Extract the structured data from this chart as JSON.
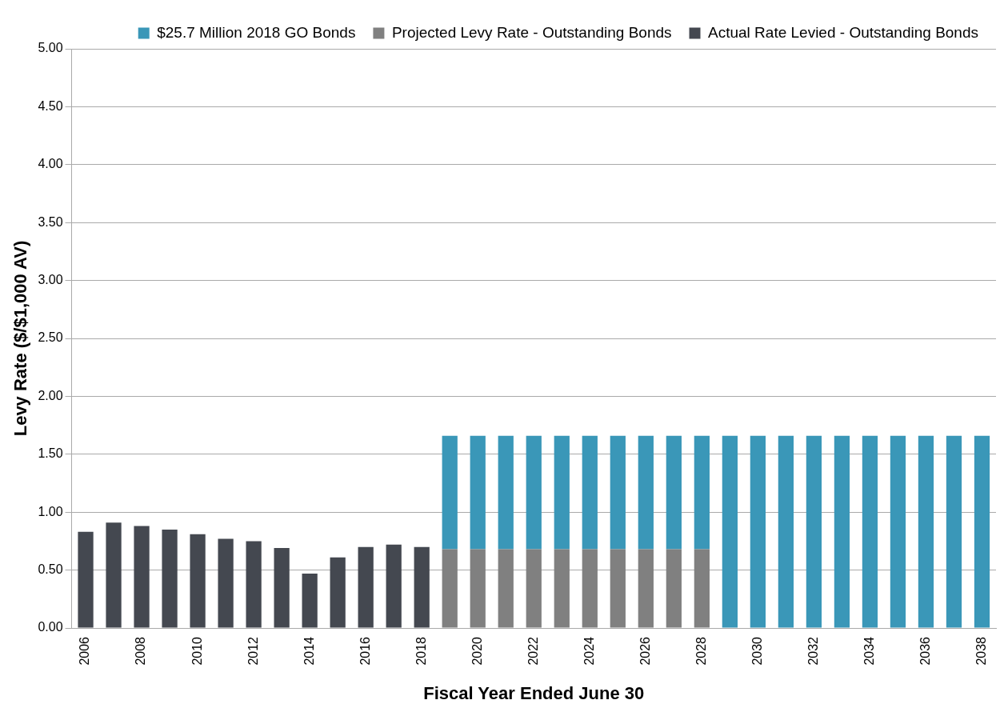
{
  "chart_data": {
    "type": "bar",
    "stacked": true,
    "xlabel": "Fiscal Year Ended June 30",
    "ylabel": "Levy Rate ($/$1,000 AV)",
    "categories": [
      "2006",
      null,
      "2008",
      null,
      "2010",
      null,
      "2012",
      null,
      "2014",
      null,
      "2016",
      null,
      "2018",
      null,
      "2020",
      null,
      "2022",
      null,
      "2024",
      null,
      "2026",
      null,
      "2028",
      null,
      "2030",
      null,
      "2032",
      null,
      "2034",
      null,
      "2036",
      null,
      "2038"
    ],
    "series": [
      {
        "name": "Actual Rate Levied - Outstanding Bonds",
        "color": "#444850",
        "values": [
          0.83,
          0.91,
          0.88,
          0.85,
          0.81,
          0.77,
          0.75,
          0.69,
          0.47,
          0.61,
          0.7,
          0.72,
          0.7,
          null,
          null,
          null,
          null,
          null,
          null,
          null,
          null,
          null,
          null,
          null,
          null,
          null,
          null,
          null,
          null,
          null,
          null,
          null,
          null
        ]
      },
      {
        "name": "Projected Levy Rate - Outstanding Bonds",
        "color": "#808080",
        "values": [
          null,
          null,
          null,
          null,
          null,
          null,
          null,
          null,
          null,
          null,
          null,
          null,
          null,
          0.68,
          0.68,
          0.68,
          0.68,
          0.68,
          0.68,
          0.68,
          0.68,
          0.68,
          0.68,
          null,
          null,
          null,
          null,
          null,
          null,
          null,
          null,
          null,
          null
        ]
      },
      {
        "name": "$25.7 Million 2018 GO Bonds",
        "color": "#3a97b8",
        "values": [
          null,
          null,
          null,
          null,
          null,
          null,
          null,
          null,
          null,
          null,
          null,
          null,
          null,
          0.98,
          0.98,
          0.98,
          0.98,
          0.98,
          0.98,
          0.98,
          0.98,
          0.98,
          0.98,
          1.66,
          1.66,
          1.66,
          1.66,
          1.66,
          1.66,
          1.66,
          1.66,
          1.66,
          1.66
        ]
      }
    ],
    "ylim": [
      0,
      5
    ],
    "yticks": [
      {
        "value": 0,
        "label": "0.00"
      },
      {
        "value": 0.5,
        "label": "0.50"
      },
      {
        "value": 1,
        "label": "1.00"
      },
      {
        "value": 1.5,
        "label": "1.50"
      },
      {
        "value": 2,
        "label": "2.00"
      },
      {
        "value": 2.5,
        "label": "2.50"
      },
      {
        "value": 3,
        "label": "3.00"
      },
      {
        "value": 3.5,
        "label": "3.50"
      },
      {
        "value": 4,
        "label": "4.00"
      },
      {
        "value": 4.5,
        "label": "4.50"
      },
      {
        "value": 5,
        "label": "5.00"
      }
    ],
    "grid": "y",
    "legend": "top right"
  }
}
